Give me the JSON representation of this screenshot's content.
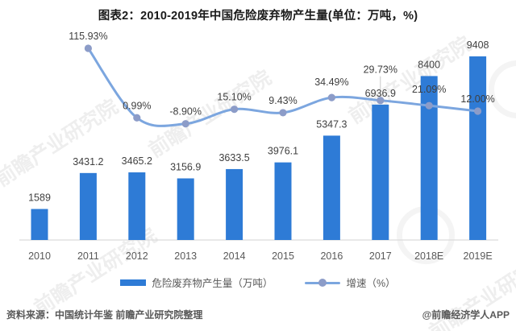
{
  "title": "图表2：2010-2019年中国危险废弃物产生量(单位：万吨，%)",
  "chart_data": {
    "type": "bar",
    "subtype": "bar+line combo",
    "categories": [
      "2010",
      "2011",
      "2012",
      "2013",
      "2014",
      "2015",
      "2016",
      "2017",
      "2018E",
      "2019E"
    ],
    "series": [
      {
        "name": "危险废弃物产生量（万吨）",
        "type": "bar",
        "values": [
          1589,
          3431.2,
          3465.2,
          3156.9,
          3633.5,
          3976.1,
          5347.3,
          6936.9,
          8400,
          9408
        ],
        "labels": [
          "1589",
          "3431.2",
          "3465.2",
          "3156.9",
          "3633.5",
          "3976.1",
          "5347.3",
          "6936.9",
          "8400",
          "9408"
        ],
        "color": "#2E7BD6"
      },
      {
        "name": "增速（%）",
        "type": "line",
        "axis": "secondary",
        "values": [
          null,
          115.93,
          0.99,
          -8.9,
          15.1,
          9.43,
          34.49,
          29.73,
          21.09,
          12.0
        ],
        "labels": [
          null,
          "115.93%",
          "0.99%",
          "-8.90%",
          "15.10%",
          "9.43%",
          "34.49%",
          "29.73%",
          "21.09%",
          "12.00%"
        ],
        "color": "#7CA6DF",
        "marker_color": "#8C9CC8",
        "label_dy": [
          0,
          0,
          0,
          0,
          0,
          0,
          -4,
          -23,
          -5,
          0
        ],
        "leader_index": 7
      }
    ],
    "grid": false,
    "legend_position": "bottom",
    "bar_axis_implied_max": 9408,
    "line_axis_range_implied": [
      -8.9,
      115.93
    ]
  },
  "footer": {
    "source": "资料来源：中国统计年鉴 前瞻产业研究院整理",
    "brand": "@前瞻经济学人APP"
  },
  "watermark": {
    "text": "前瞻产业研究院"
  },
  "colors": {
    "bar": "#2E7BD6",
    "line": "#7CA6DF",
    "marker": "#8C9CC8",
    "axis_line": "#DCDCDC",
    "value_label": "#3F3F3F",
    "tick_label": "#595959",
    "leader": "#C8C8C8"
  }
}
